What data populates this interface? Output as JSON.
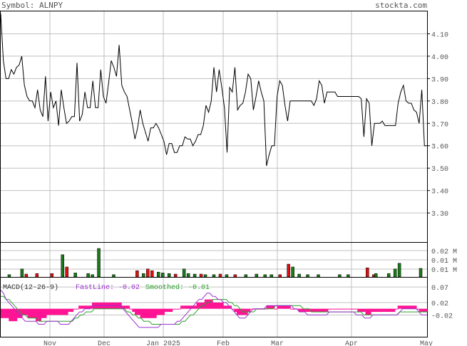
{
  "header": {
    "symbol_label": "Symbol: ALNPY",
    "site": "stockta.com"
  },
  "colors": {
    "price_line": "#000000",
    "grid": "#c0c0c0",
    "up_volume": "#1a7a1a",
    "down_volume": "#dd1111",
    "macd_hist": "#ff1493",
    "fast_line": "#9b30d0",
    "smoothed_line": "#2ca02c",
    "text": "#555555"
  },
  "chart_data": [
    {
      "type": "line",
      "name": "price",
      "x_tick_labels": [
        "Nov",
        "Dec",
        "Jan 2025",
        "Feb",
        "Mar",
        "Apr",
        "May"
      ],
      "y_tick_labels": [
        "4.10",
        "4.00",
        "3.90",
        "3.80",
        "3.70",
        "3.60",
        "3.50",
        "3.40",
        "3.30"
      ],
      "ylim": [
        3.17,
        4.2
      ],
      "grid": true,
      "values": [
        4.19,
        3.98,
        3.9,
        3.9,
        3.94,
        3.92,
        3.95,
        3.96,
        4.0,
        3.87,
        3.82,
        3.8,
        3.8,
        3.77,
        3.85,
        3.76,
        3.73,
        3.91,
        3.71,
        3.84,
        3.77,
        3.8,
        3.69,
        3.85,
        3.77,
        3.7,
        3.71,
        3.73,
        3.73,
        3.97,
        3.71,
        3.74,
        3.84,
        3.77,
        3.77,
        3.89,
        3.77,
        3.77,
        3.94,
        3.82,
        3.79,
        3.88,
        3.98,
        3.95,
        3.91,
        4.05,
        3.87,
        3.84,
        3.82,
        3.76,
        3.7,
        3.63,
        3.68,
        3.76,
        3.7,
        3.66,
        3.62,
        3.68,
        3.68,
        3.7,
        3.68,
        3.65,
        3.62,
        3.56,
        3.61,
        3.61,
        3.57,
        3.57,
        3.6,
        3.6,
        3.64,
        3.63,
        3.63,
        3.6,
        3.62,
        3.65,
        3.65,
        3.69,
        3.78,
        3.75,
        3.8,
        3.95,
        3.84,
        3.94,
        3.86,
        3.77,
        3.57,
        3.86,
        3.84,
        3.95,
        3.76,
        3.78,
        3.79,
        3.84,
        3.92,
        3.9,
        3.76,
        3.82,
        3.89,
        3.84,
        3.8,
        3.51,
        3.56,
        3.6,
        3.6,
        3.82,
        3.89,
        3.87,
        3.78,
        3.71,
        3.8,
        3.8,
        3.8,
        3.8,
        3.8,
        3.8,
        3.8,
        3.8,
        3.8,
        3.78,
        3.81,
        3.89,
        3.87,
        3.79,
        3.84,
        3.84,
        3.84,
        3.84,
        3.82,
        3.82,
        3.82,
        3.82,
        3.82,
        3.82,
        3.82,
        3.82,
        3.82,
        3.81,
        3.64,
        3.81,
        3.79,
        3.6,
        3.7,
        3.7,
        3.7,
        3.71,
        3.69,
        3.69,
        3.69,
        3.69,
        3.69,
        3.79,
        3.84,
        3.87,
        3.8,
        3.79,
        3.79,
        3.76,
        3.75,
        3.7,
        3.85,
        3.6,
        3.6
      ]
    },
    {
      "type": "bar",
      "name": "volume",
      "y_tick_labels": [
        "0.02 M",
        "0.01 M",
        "0.01 M"
      ],
      "bars": [
        {
          "x": 0.02,
          "v": 0.08,
          "c": "up"
        },
        {
          "x": 0.05,
          "v": 0.28,
          "c": "up"
        },
        {
          "x": 0.06,
          "v": 0.1,
          "c": "down"
        },
        {
          "x": 0.085,
          "v": 0.12,
          "c": "down"
        },
        {
          "x": 0.12,
          "v": 0.12,
          "c": "down"
        },
        {
          "x": 0.145,
          "v": 0.78,
          "c": "up"
        },
        {
          "x": 0.155,
          "v": 0.35,
          "c": "down"
        },
        {
          "x": 0.175,
          "v": 0.14,
          "c": "up"
        },
        {
          "x": 0.205,
          "v": 0.12,
          "c": "up"
        },
        {
          "x": 0.215,
          "v": 0.08,
          "c": "up"
        },
        {
          "x": 0.23,
          "v": 1.0,
          "c": "up"
        },
        {
          "x": 0.265,
          "v": 0.08,
          "c": "up"
        },
        {
          "x": 0.32,
          "v": 0.22,
          "c": "down"
        },
        {
          "x": 0.335,
          "v": 0.12,
          "c": "up"
        },
        {
          "x": 0.345,
          "v": 0.28,
          "c": "down"
        },
        {
          "x": 0.355,
          "v": 0.22,
          "c": "down"
        },
        {
          "x": 0.37,
          "v": 0.17,
          "c": "up"
        },
        {
          "x": 0.38,
          "v": 0.14,
          "c": "up"
        },
        {
          "x": 0.395,
          "v": 0.12,
          "c": "up"
        },
        {
          "x": 0.41,
          "v": 0.1,
          "c": "down"
        },
        {
          "x": 0.43,
          "v": 0.28,
          "c": "up"
        },
        {
          "x": 0.44,
          "v": 0.12,
          "c": "up"
        },
        {
          "x": 0.455,
          "v": 0.1,
          "c": "up"
        },
        {
          "x": 0.47,
          "v": 0.1,
          "c": "down"
        },
        {
          "x": 0.48,
          "v": 0.08,
          "c": "up"
        },
        {
          "x": 0.5,
          "v": 0.08,
          "c": "up"
        },
        {
          "x": 0.515,
          "v": 0.1,
          "c": "down"
        },
        {
          "x": 0.53,
          "v": 0.08,
          "c": "up"
        },
        {
          "x": 0.55,
          "v": 0.08,
          "c": "down"
        },
        {
          "x": 0.575,
          "v": 0.08,
          "c": "up"
        },
        {
          "x": 0.6,
          "v": 0.1,
          "c": "up"
        },
        {
          "x": 0.62,
          "v": 0.08,
          "c": "up"
        },
        {
          "x": 0.635,
          "v": 0.08,
          "c": "up"
        },
        {
          "x": 0.655,
          "v": 0.08,
          "c": "down"
        },
        {
          "x": 0.675,
          "v": 0.45,
          "c": "down"
        },
        {
          "x": 0.685,
          "v": 0.35,
          "c": "up"
        },
        {
          "x": 0.7,
          "v": 0.1,
          "c": "up"
        },
        {
          "x": 0.72,
          "v": 0.08,
          "c": "up"
        },
        {
          "x": 0.745,
          "v": 0.08,
          "c": "up"
        },
        {
          "x": 0.795,
          "v": 0.08,
          "c": "up"
        },
        {
          "x": 0.815,
          "v": 0.08,
          "c": "up"
        },
        {
          "x": 0.86,
          "v": 0.32,
          "c": "down"
        },
        {
          "x": 0.875,
          "v": 0.08,
          "c": "down"
        },
        {
          "x": 0.88,
          "v": 0.12,
          "c": "up"
        },
        {
          "x": 0.91,
          "v": 0.12,
          "c": "up"
        },
        {
          "x": 0.925,
          "v": 0.28,
          "c": "up"
        },
        {
          "x": 0.935,
          "v": 0.48,
          "c": "up"
        },
        {
          "x": 0.985,
          "v": 0.3,
          "c": "up"
        }
      ]
    },
    {
      "type": "line",
      "name": "macd",
      "label": "MACD(12-26-9)",
      "fast_label": "FastLine: -0.02",
      "smoothed_label": "Smoothed: -0.01",
      "y_tick_labels": [
        "0.07",
        "0.02",
        "-0.02"
      ],
      "ylim": [
        -0.09,
        0.1
      ],
      "hist": [
        -0.03,
        -0.03,
        -0.03,
        -0.04,
        -0.04,
        -0.04,
        -0.03,
        -0.03,
        -0.02,
        -0.02,
        -0.03,
        -0.03,
        -0.03,
        -0.04,
        -0.04,
        -0.03,
        -0.03,
        -0.02,
        -0.02,
        -0.02,
        -0.02,
        -0.02,
        -0.02,
        -0.02,
        -0.02,
        -0.01,
        -0.01,
        0.0,
        0.0,
        0.01,
        0.01,
        0.01,
        0.01,
        0.01,
        0.02,
        0.02,
        0.02,
        0.02,
        0.02,
        0.02,
        0.02,
        0.02,
        0.02,
        0.02,
        0.02,
        0.01,
        0.01,
        0.01,
        0.0,
        -0.01,
        -0.02,
        -0.02,
        -0.03,
        -0.03,
        -0.03,
        -0.03,
        -0.03,
        -0.03,
        -0.02,
        -0.02,
        -0.02,
        -0.01,
        -0.01,
        -0.01,
        0.0,
        0.0,
        0.0,
        0.01,
        0.01,
        0.01,
        0.01,
        0.01,
        0.01,
        0.02,
        0.02,
        0.02,
        0.03,
        0.03,
        0.03,
        0.02,
        0.02,
        0.02,
        0.02,
        0.01,
        0.01,
        0.01,
        0.0,
        -0.01,
        -0.02,
        -0.02,
        -0.02,
        -0.02,
        -0.01,
        0.0,
        0.0,
        0.0,
        0.0,
        0.0,
        0.0,
        0.01,
        0.01,
        0.01,
        0.0,
        0.01,
        0.01,
        0.01,
        0.01,
        0.01,
        0.0,
        0.0,
        0.0,
        -0.01,
        -0.01,
        -0.01,
        -0.01,
        -0.01,
        -0.01,
        -0.01,
        -0.01,
        -0.01,
        -0.01,
        -0.01,
        0.0,
        0.0,
        0.0,
        0.0,
        0.0,
        0.0,
        0.0,
        0.0,
        0.0,
        0.0,
        0.0,
        -0.01,
        -0.01,
        -0.01,
        -0.02,
        -0.02,
        -0.01,
        -0.01,
        -0.01,
        -0.01,
        -0.01,
        -0.01,
        -0.01,
        -0.01,
        -0.01,
        0.0,
        0.01,
        0.01,
        0.01,
        0.01,
        0.01,
        0.01,
        0.01,
        0.0,
        -0.01,
        -0.01,
        -0.01
      ],
      "fast": [
        0.06,
        0.05,
        0.03,
        0.02,
        0.01,
        0.0,
        -0.01,
        -0.02,
        -0.03,
        -0.04,
        -0.04,
        -0.04,
        -0.04,
        -0.04,
        -0.05,
        -0.05,
        -0.05,
        -0.04,
        -0.04,
        -0.04,
        -0.04,
        -0.04,
        -0.05,
        -0.05,
        -0.05,
        -0.05,
        -0.04,
        -0.03,
        -0.02,
        -0.01,
        -0.01,
        0.0,
        0.0,
        0.0,
        0.01,
        0.01,
        0.01,
        0.01,
        0.01,
        0.01,
        0.01,
        0.01,
        0.01,
        0.01,
        0.01,
        0.0,
        -0.01,
        -0.02,
        -0.03,
        -0.04,
        -0.05,
        -0.06,
        -0.06,
        -0.06,
        -0.06,
        -0.06,
        -0.06,
        -0.06,
        -0.06,
        -0.05,
        -0.05,
        -0.05,
        -0.05,
        -0.05,
        -0.05,
        -0.04,
        -0.04,
        -0.03,
        -0.02,
        -0.01,
        0.0,
        0.01,
        0.02,
        0.03,
        0.03,
        0.04,
        0.05,
        0.05,
        0.04,
        0.04,
        0.03,
        0.03,
        0.02,
        0.02,
        0.01,
        0.0,
        -0.01,
        -0.02,
        -0.03,
        -0.03,
        -0.03,
        -0.02,
        -0.01,
        0.0,
        0.0,
        0.0,
        0.0,
        0.0,
        0.01,
        0.01,
        0.01,
        0.01,
        0.01,
        0.01,
        0.01,
        0.01,
        0.01,
        0.01,
        0.0,
        0.0,
        -0.01,
        -0.01,
        -0.01,
        -0.02,
        -0.02,
        -0.02,
        -0.02,
        -0.02,
        -0.02,
        -0.02,
        -0.02,
        -0.01,
        -0.01,
        -0.01,
        -0.01,
        -0.01,
        -0.01,
        -0.01,
        -0.01,
        -0.01,
        -0.01,
        -0.02,
        -0.02,
        -0.02,
        -0.03,
        -0.03,
        -0.03,
        -0.02,
        -0.02,
        -0.02,
        -0.02,
        -0.02,
        -0.02,
        -0.02,
        -0.02,
        -0.02,
        -0.02,
        -0.01,
        0.0,
        0.0,
        0.0,
        0.0,
        0.0,
        0.0,
        -0.01,
        -0.02,
        -0.02,
        -0.02
      ],
      "smoothed": [
        0.04,
        0.04,
        0.03,
        0.03,
        0.02,
        0.01,
        0.0,
        -0.01,
        -0.02,
        -0.02,
        -0.03,
        -0.03,
        -0.03,
        -0.03,
        -0.04,
        -0.04,
        -0.04,
        -0.04,
        -0.04,
        -0.04,
        -0.04,
        -0.04,
        -0.04,
        -0.04,
        -0.04,
        -0.04,
        -0.04,
        -0.03,
        -0.03,
        -0.02,
        -0.02,
        -0.01,
        -0.01,
        -0.01,
        0.0,
        0.0,
        0.0,
        0.0,
        0.0,
        0.0,
        0.0,
        0.0,
        0.0,
        0.0,
        0.0,
        0.0,
        -0.01,
        -0.01,
        -0.02,
        -0.02,
        -0.03,
        -0.03,
        -0.04,
        -0.04,
        -0.04,
        -0.05,
        -0.05,
        -0.05,
        -0.05,
        -0.05,
        -0.05,
        -0.05,
        -0.05,
        -0.05,
        -0.05,
        -0.05,
        -0.04,
        -0.04,
        -0.03,
        -0.02,
        -0.02,
        -0.01,
        0.0,
        0.01,
        0.01,
        0.02,
        0.02,
        0.03,
        0.03,
        0.03,
        0.03,
        0.03,
        0.03,
        0.02,
        0.02,
        0.01,
        0.01,
        0.0,
        -0.01,
        -0.01,
        -0.01,
        -0.01,
        -0.01,
        0.0,
        0.0,
        0.0,
        0.0,
        0.0,
        0.0,
        0.0,
        0.01,
        0.01,
        0.01,
        0.01,
        0.01,
        0.01,
        0.01,
        0.01,
        0.01,
        0.01,
        0.0,
        0.0,
        0.0,
        -0.01,
        -0.01,
        -0.01,
        -0.01,
        -0.01,
        -0.01,
        -0.01,
        -0.01,
        -0.01,
        -0.01,
        -0.01,
        -0.01,
        -0.01,
        -0.01,
        -0.01,
        -0.01,
        -0.01,
        -0.01,
        -0.01,
        -0.02,
        -0.02,
        -0.02,
        -0.02,
        -0.02,
        -0.02,
        -0.02,
        -0.02,
        -0.02,
        -0.02,
        -0.02,
        -0.02,
        -0.02,
        -0.01,
        -0.01,
        -0.01,
        -0.01,
        -0.01,
        -0.01,
        -0.01,
        -0.01,
        -0.01,
        -0.01,
        -0.01
      ]
    }
  ]
}
